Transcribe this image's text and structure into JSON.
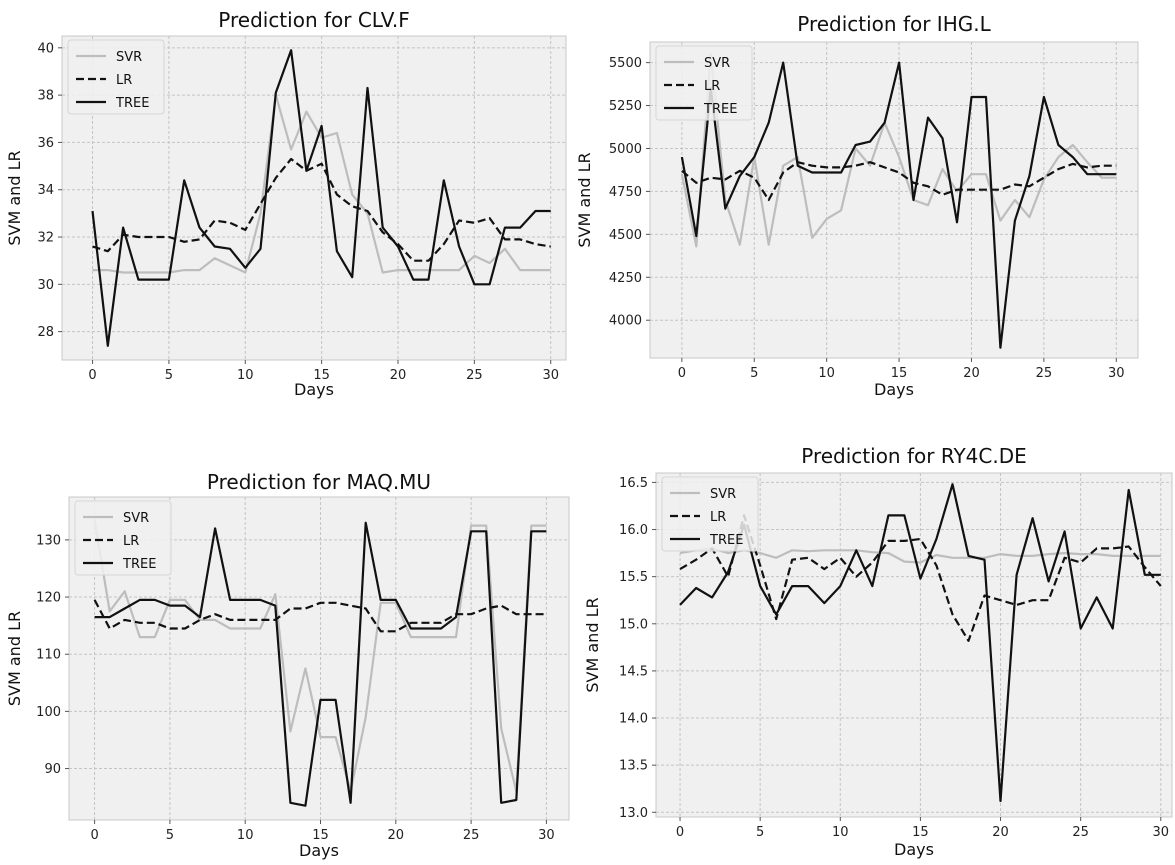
{
  "chart_data": [
    {
      "type": "line",
      "title": "Prediction for CLV.F",
      "xlabel": "Days",
      "ylabel": "SVM and LR",
      "xlim": [
        -2,
        31
      ],
      "ylim": [
        26.8,
        40.5
      ],
      "xticks": [
        0,
        5,
        10,
        15,
        20,
        25,
        30
      ],
      "yticks": [
        28,
        30,
        32,
        34,
        36,
        38,
        40
      ],
      "legend_position": "top-left",
      "grid": true,
      "x": [
        0,
        1,
        2,
        3,
        4,
        5,
        6,
        7,
        8,
        9,
        10,
        11,
        12,
        13,
        14,
        15,
        16,
        17,
        18,
        19,
        20,
        21,
        22,
        23,
        24,
        25,
        26,
        27,
        28,
        29,
        30
      ],
      "series": [
        {
          "name": "SVR",
          "style": "solid",
          "color": "#bdbdbd",
          "values": [
            30.6,
            30.6,
            30.5,
            30.5,
            30.5,
            30.5,
            30.6,
            30.6,
            31.1,
            30.8,
            30.5,
            33.0,
            38.0,
            35.7,
            37.3,
            36.2,
            36.4,
            33.8,
            33.0,
            30.5,
            30.6,
            30.6,
            30.6,
            30.6,
            30.6,
            31.2,
            30.9,
            31.5,
            30.6,
            30.6,
            30.6
          ]
        },
        {
          "name": "LR",
          "style": "dashed",
          "color": "#111111",
          "values": [
            31.6,
            31.4,
            32.1,
            32.0,
            32.0,
            32.0,
            31.8,
            31.9,
            32.7,
            32.6,
            32.3,
            33.4,
            34.5,
            35.3,
            34.8,
            35.1,
            33.8,
            33.3,
            33.1,
            32.2,
            31.7,
            31.0,
            31.0,
            31.7,
            32.7,
            32.6,
            32.8,
            31.9,
            31.9,
            31.7,
            31.6
          ]
        },
        {
          "name": "TREE",
          "style": "solid",
          "color": "#111111",
          "values": [
            33.1,
            27.4,
            32.4,
            30.2,
            30.2,
            30.2,
            34.4,
            32.4,
            31.6,
            31.5,
            30.7,
            31.5,
            38.1,
            39.9,
            34.8,
            36.7,
            31.4,
            30.3,
            38.3,
            32.4,
            31.6,
            30.2,
            30.2,
            34.4,
            31.6,
            30.0,
            30.0,
            32.4,
            32.4,
            33.1,
            33.1
          ]
        }
      ]
    },
    {
      "type": "line",
      "title": "Prediction for IHG.L",
      "xlabel": "Days",
      "ylabel": "SVM and LR",
      "xlim": [
        -2.2,
        31.5
      ],
      "ylim": [
        3780,
        5620
      ],
      "xticks": [
        0,
        5,
        10,
        15,
        20,
        25,
        30
      ],
      "yticks": [
        4000,
        4250,
        4500,
        4750,
        5000,
        5250,
        5500
      ],
      "legend_position": "top-left",
      "grid": true,
      "x": [
        0,
        1,
        2,
        3,
        4,
        5,
        6,
        7,
        8,
        9,
        10,
        11,
        12,
        13,
        14,
        15,
        16,
        17,
        18,
        19,
        20,
        21,
        22,
        23,
        24,
        25,
        26,
        27,
        28,
        29,
        30
      ],
      "series": [
        {
          "name": "SVR",
          "style": "solid",
          "color": "#bdbdbd",
          "values": [
            4850,
            4430,
            5550,
            4700,
            4440,
            4950,
            4440,
            4900,
            4950,
            4480,
            4590,
            4640,
            5000,
            4900,
            5150,
            4950,
            4700,
            4670,
            4880,
            4750,
            4850,
            4850,
            4580,
            4700,
            4600,
            4820,
            4950,
            5020,
            4920,
            4830,
            4830
          ]
        },
        {
          "name": "LR",
          "style": "dashed",
          "color": "#111111",
          "values": [
            4870,
            4800,
            4830,
            4820,
            4870,
            4830,
            4700,
            4860,
            4920,
            4900,
            4890,
            4890,
            4900,
            4920,
            4890,
            4860,
            4800,
            4780,
            4730,
            4760,
            4760,
            4760,
            4760,
            4790,
            4780,
            4830,
            4880,
            4910,
            4890,
            4900,
            4900
          ]
        },
        {
          "name": "TREE",
          "style": "solid",
          "color": "#111111",
          "values": [
            4950,
            4490,
            5350,
            4650,
            4840,
            4950,
            5150,
            5500,
            4900,
            4860,
            4860,
            4860,
            5020,
            5040,
            5150,
            5500,
            4700,
            5180,
            5060,
            4570,
            5300,
            5300,
            3840,
            4580,
            4840,
            5300,
            5020,
            4950,
            4850,
            4850,
            4850
          ]
        }
      ]
    },
    {
      "type": "line",
      "title": "Prediction for MAQ.MU",
      "xlabel": "Days",
      "ylabel": "SVM and LR",
      "xlim": [
        -1.7,
        31.5
      ],
      "ylim": [
        81,
        137.5
      ],
      "xticks": [
        0,
        5,
        10,
        15,
        20,
        25,
        30
      ],
      "yticks": [
        90,
        100,
        110,
        120,
        130
      ],
      "legend_position": "top-left",
      "grid": true,
      "x": [
        0,
        1,
        2,
        3,
        4,
        5,
        6,
        7,
        8,
        9,
        10,
        11,
        12,
        13,
        14,
        15,
        16,
        17,
        18,
        19,
        20,
        21,
        22,
        23,
        24,
        25,
        26,
        27,
        28,
        29,
        30
      ],
      "series": [
        {
          "name": "SVR",
          "style": "solid",
          "color": "#bdbdbd",
          "values": [
            133.5,
            117.5,
            121.0,
            113.0,
            113.0,
            119.5,
            119.5,
            116.0,
            116.0,
            114.5,
            114.5,
            114.5,
            120.5,
            96.5,
            107.5,
            95.5,
            95.5,
            86.0,
            99.0,
            119.0,
            119.0,
            113.0,
            113.0,
            113.0,
            113.0,
            132.5,
            132.5,
            97.0,
            86.0,
            132.5,
            132.5
          ]
        },
        {
          "name": "LR",
          "style": "dashed",
          "color": "#111111",
          "values": [
            119.5,
            114.5,
            116.0,
            115.5,
            115.5,
            114.5,
            114.5,
            116.0,
            117.0,
            116.0,
            116.0,
            116.0,
            116.0,
            118.0,
            118.0,
            119.0,
            119.0,
            118.5,
            118.0,
            114.0,
            114.0,
            115.5,
            115.5,
            115.5,
            117.0,
            117.0,
            118.0,
            118.5,
            117.0,
            117.0,
            117.0
          ]
        },
        {
          "name": "TREE",
          "style": "solid",
          "color": "#111111",
          "values": [
            116.5,
            116.5,
            118.0,
            119.5,
            119.5,
            118.5,
            118.5,
            116.5,
            132.0,
            119.5,
            119.5,
            119.5,
            118.5,
            84.0,
            83.5,
            102.0,
            102.0,
            84.0,
            133.0,
            119.5,
            119.5,
            114.5,
            114.5,
            114.5,
            116.5,
            131.5,
            131.5,
            84.0,
            84.5,
            131.5,
            131.5
          ]
        }
      ]
    },
    {
      "type": "line",
      "title": "Prediction for RY4C.DE",
      "xlabel": "Days",
      "ylabel": "SVM and LR",
      "xlim": [
        -1.5,
        30.7
      ],
      "ylim": [
        12.95,
        16.6
      ],
      "xticks": [
        0,
        5,
        10,
        15,
        20,
        25,
        30
      ],
      "yticks": [
        13.0,
        13.5,
        14.0,
        14.5,
        15.0,
        15.5,
        16.0,
        16.5
      ],
      "legend_position": "top-left",
      "grid": true,
      "x": [
        0,
        1,
        2,
        3,
        4,
        5,
        6,
        7,
        8,
        9,
        10,
        11,
        12,
        13,
        14,
        15,
        16,
        17,
        18,
        19,
        20,
        21,
        22,
        23,
        24,
        25,
        26,
        27,
        28,
        29,
        30
      ],
      "series": [
        {
          "name": "SVR",
          "style": "solid",
          "color": "#bdbdbd",
          "values": [
            15.75,
            15.78,
            15.8,
            15.75,
            15.78,
            15.75,
            15.7,
            15.78,
            15.77,
            15.78,
            15.78,
            15.78,
            15.76,
            15.75,
            15.66,
            15.65,
            15.73,
            15.7,
            15.7,
            15.7,
            15.74,
            15.72,
            15.72,
            15.74,
            15.75,
            15.74,
            15.74,
            15.72,
            15.72,
            15.72,
            15.72
          ]
        },
        {
          "name": "LR",
          "style": "dashed",
          "color": "#111111",
          "values": [
            15.58,
            15.68,
            15.8,
            15.5,
            16.15,
            15.62,
            15.05,
            15.68,
            15.7,
            15.58,
            15.7,
            15.5,
            15.65,
            15.88,
            15.88,
            15.9,
            15.62,
            15.1,
            14.82,
            15.3,
            15.25,
            15.2,
            15.25,
            15.25,
            15.7,
            15.65,
            15.8,
            15.8,
            15.82,
            15.6,
            15.4
          ]
        },
        {
          "name": "TREE",
          "style": "solid",
          "color": "#111111",
          "values": [
            15.2,
            15.38,
            15.28,
            15.55,
            16.05,
            15.4,
            15.1,
            15.4,
            15.4,
            15.22,
            15.4,
            15.78,
            15.4,
            16.15,
            16.15,
            15.48,
            15.9,
            16.48,
            15.72,
            15.68,
            13.12,
            15.52,
            16.12,
            15.45,
            15.98,
            14.95,
            15.28,
            14.95,
            16.42,
            15.52,
            15.52
          ]
        }
      ]
    }
  ]
}
